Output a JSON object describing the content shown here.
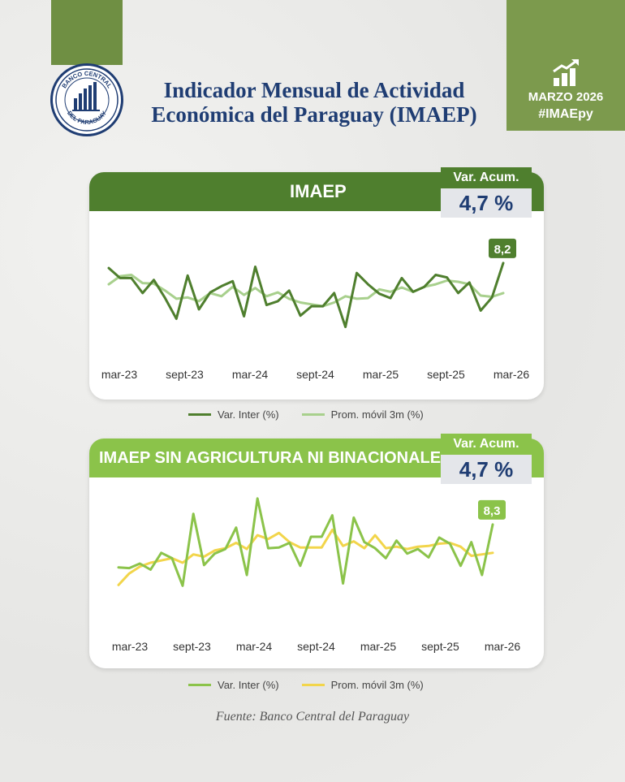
{
  "header": {
    "title_line1": "Indicador Mensual de Actividad",
    "title_line2": "Económica del Paraguay (IMAEP)",
    "logo_text": "BANCO CENTRAL DEL PARAGUAY",
    "date": "MARZO 2026",
    "hashtag": "#IMAEpy"
  },
  "colors": {
    "dark_green": "#4f7f2e",
    "light_green": "#8bc34a",
    "pale_green": "#a8d08d",
    "yellow": "#f2d54b",
    "navy": "#1f3d73",
    "olive": "#7c9a4d"
  },
  "source": "Fuente: Banco Central del Paraguay",
  "chart_data": [
    {
      "type": "line",
      "title": "IMAEP",
      "acc_label": "Var. Acum.",
      "acc_value": "4,7 %",
      "last_label": "8,2",
      "x_ticks": [
        "mar-23",
        "sept-23",
        "mar-24",
        "sept-24",
        "mar-25",
        "sept-25",
        "mar-26"
      ],
      "ylim": [
        -4,
        10
      ],
      "series": [
        {
          "name": "Var. Inter (%)",
          "color": "#4f7f2e",
          "values": [
            7.4,
            5.8,
            5.8,
            3.4,
            5.5,
            2.6,
            -0.7,
            6.2,
            0.8,
            3.5,
            4.5,
            5.3,
            -0.3,
            7.6,
            1.5,
            2.1,
            3.8,
            -0.2,
            1.3,
            1.3,
            3.4,
            -2.0,
            6.6,
            4.8,
            3.3,
            2.6,
            5.8,
            3.6,
            4.4,
            6.3,
            5.9,
            3.4,
            5.1,
            0.6,
            2.7,
            8.2
          ]
        },
        {
          "name": "Prom. móvil 3m (%)",
          "color": "#a8d08d",
          "values": [
            4.8,
            6.1,
            6.3,
            5.0,
            4.9,
            3.8,
            2.5,
            2.7,
            2.1,
            3.4,
            2.9,
            4.4,
            3.1,
            4.2,
            2.9,
            3.5,
            2.5,
            1.9,
            1.6,
            1.3,
            1.9,
            2.9,
            2.5,
            2.6,
            4.0,
            3.6,
            4.3,
            3.6,
            4.4,
            4.8,
            5.4,
            5.2,
            4.8,
            3.0,
            2.8,
            3.4
          ]
        }
      ]
    },
    {
      "type": "line",
      "title": "IMAEP SIN AGRICULTURA NI BINACIONALES",
      "acc_label": "Var. Acum.",
      "acc_value": "4,7 %",
      "last_label": "8,3",
      "x_ticks": [
        "mar-23",
        "sept-23",
        "mar-24",
        "sept-24",
        "mar-25",
        "sept-25",
        "mar-26"
      ],
      "ylim": [
        -2,
        12
      ],
      "series": [
        {
          "name": "Var. Inter (%)",
          "color": "#8bc34a",
          "values": [
            2.7,
            2.6,
            3.2,
            2.4,
            4.6,
            3.9,
            0.3,
            9.7,
            3.0,
            4.5,
            5.1,
            7.9,
            1.7,
            11.7,
            5.2,
            5.3,
            5.9,
            2.9,
            6.7,
            6.7,
            9.5,
            0.6,
            9.2,
            6.0,
            5.2,
            3.9,
            6.2,
            4.5,
            5.1,
            4.0,
            6.6,
            5.8,
            2.9,
            6.0,
            1.7,
            8.3
          ]
        },
        {
          "name": "Prom. móvil 3m (%)",
          "color": "#f2d54b",
          "values": [
            0.4,
            1.9,
            2.8,
            3.3,
            3.6,
            3.9,
            3.3,
            4.4,
            4.1,
            4.9,
            5.2,
            5.9,
            5.1,
            6.9,
            6.4,
            7.2,
            6.0,
            5.3,
            5.3,
            5.3,
            7.6,
            5.5,
            6.1,
            5.2,
            6.9,
            5.2,
            5.4,
            5.1,
            5.4,
            5.5,
            5.8,
            5.9,
            5.4,
            4.2,
            4.4,
            4.6
          ]
        }
      ]
    }
  ]
}
